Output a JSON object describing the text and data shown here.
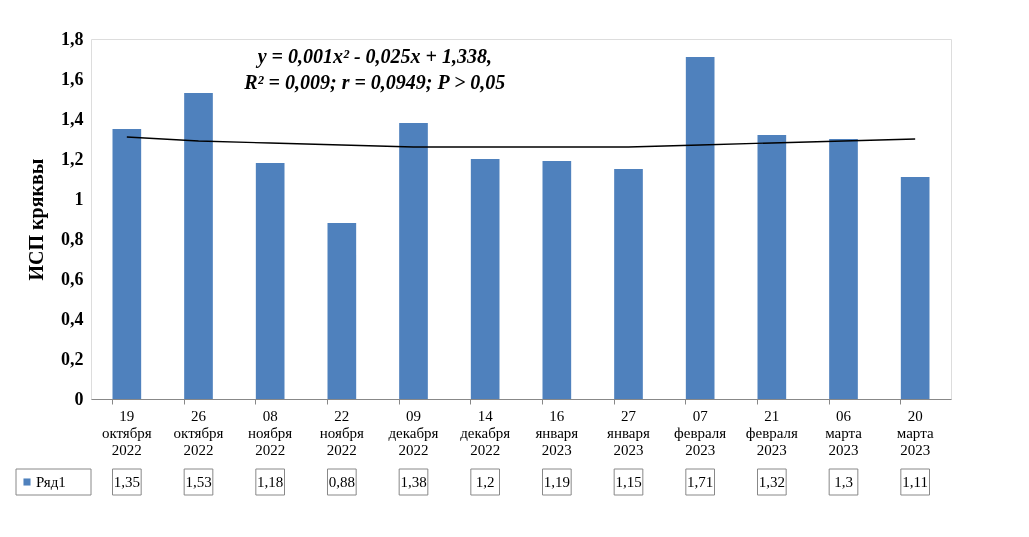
{
  "chart_data": {
    "type": "bar",
    "ylabel": "ИСП кряквы",
    "categories": [
      "19 октября 2022",
      "26 октября 2022",
      "08 ноября 2022",
      "22 ноября 2022",
      "09 декабря 2022",
      "14 декабря 2022",
      "16 января 2023",
      "27 января 2023",
      "07 февраля 2023",
      "21 февраля 2023",
      "06 марта 2023",
      "20 марта 2023"
    ],
    "series": [
      {
        "name": "Ряд1",
        "color": "#4f81bd",
        "values": [
          1.35,
          1.53,
          1.18,
          0.88,
          1.38,
          1.2,
          1.19,
          1.15,
          1.71,
          1.32,
          1.3,
          1.11
        ],
        "value_labels": [
          "1,35",
          "1,53",
          "1,18",
          "0,88",
          "1,38",
          "1,2",
          "1,19",
          "1,15",
          "1,71",
          "1,32",
          "1,3",
          "1,11"
        ]
      },
      {
        "type": "line",
        "color": "#000000",
        "values": [
          1.31,
          1.29,
          1.28,
          1.27,
          1.26,
          1.26,
          1.26,
          1.26,
          1.27,
          1.28,
          1.29,
          1.3
        ]
      }
    ],
    "ylim": [
      0,
      1.8
    ],
    "yticks": [
      0,
      {
        "value": 0.2,
        "label": "0,2"
      },
      {
        "value": 0.4,
        "label": "0,4"
      },
      {
        "value": 0.6,
        "label": "0,6"
      },
      {
        "value": 0.8,
        "label": "0,8"
      },
      1,
      {
        "value": 1.2,
        "label": "1,2"
      },
      {
        "value": 1.4,
        "label": "1,4"
      },
      {
        "value": 1.6,
        "label": "1,6"
      },
      {
        "value": 1.8,
        "label": "1,8"
      }
    ],
    "grid": false,
    "legend": "bottom",
    "annotations": [
      "y = 0,001x² - 0,025x + 1,338,",
      "R² = 0,009; r = 0,0949;  P > 0,05"
    ]
  }
}
